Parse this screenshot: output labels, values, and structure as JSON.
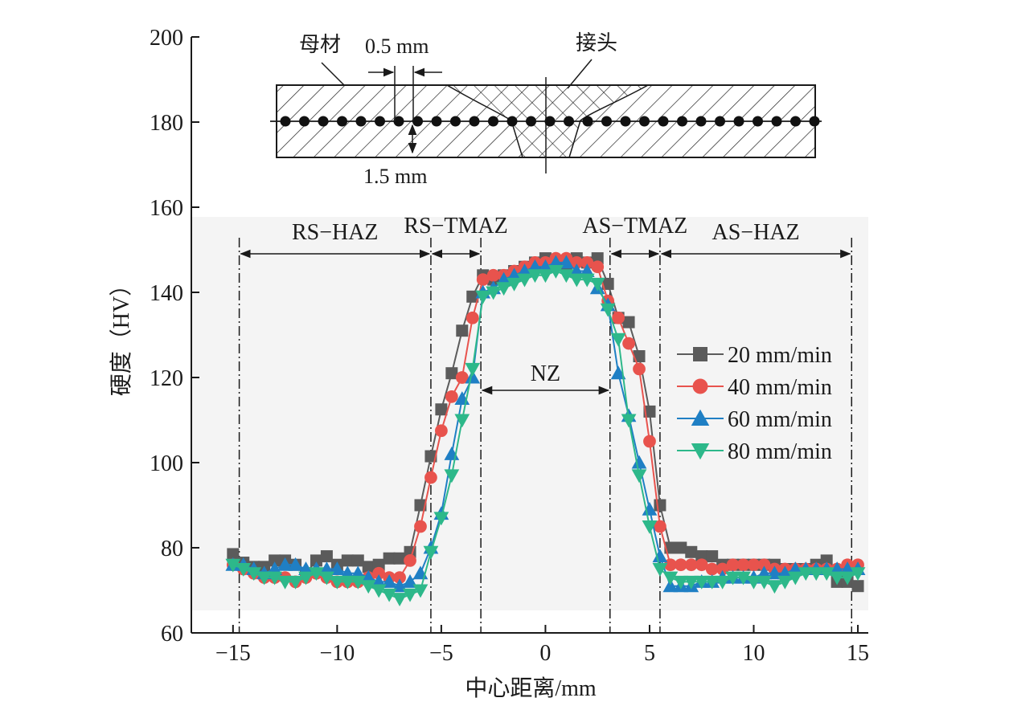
{
  "chart_data": {
    "type": "line",
    "title": "",
    "xlabel": "中心距离/mm",
    "ylabel": "硬度（HV）",
    "xlim": [
      -17,
      15.5
    ],
    "ylim": [
      60,
      200
    ],
    "xticks": [
      -15,
      -10,
      -5,
      0,
      5,
      10,
      15
    ],
    "yticks": [
      60,
      80,
      100,
      120,
      140,
      160,
      180,
      200
    ],
    "xtick_labels": [
      "−15",
      "−10",
      "−5",
      "0",
      "5",
      "10",
      "15"
    ],
    "ytick_labels": [
      "60",
      "80",
      "100",
      "120",
      "140",
      "160",
      "180",
      "200"
    ],
    "grid": false,
    "legend_position": "right",
    "zone_boundaries": [
      -14.7,
      -5.5,
      -3.1,
      3.1,
      5.5,
      14.7
    ],
    "zones": [
      {
        "label": "RS−HAZ",
        "from": -14.7,
        "to": -5.5
      },
      {
        "label": "RS−TMAZ",
        "from": -5.5,
        "to": -3.1
      },
      {
        "label": "NZ",
        "from": -3.1,
        "to": 3.1
      },
      {
        "label": "AS−TMAZ",
        "from": 3.1,
        "to": 5.5
      },
      {
        "label": "AS−HAZ",
        "from": 5.5,
        "to": 14.7
      }
    ],
    "series": [
      {
        "name": "20 mm/min",
        "color": "#5b5b5b",
        "marker": "square",
        "x": [
          -15,
          -14.5,
          -14,
          -13.5,
          -13,
          -12.5,
          -12,
          -11.5,
          -11,
          -10.5,
          -10,
          -9.5,
          -9,
          -8.5,
          -8,
          -7.5,
          -7,
          -6.5,
          -6,
          -5.5,
          -5,
          -4.5,
          -4,
          -3.5,
          -3,
          -2.5,
          -2,
          -1.5,
          -1,
          -0.5,
          0,
          0.5,
          1,
          1.5,
          2,
          2.5,
          3,
          3.5,
          4,
          4.5,
          5,
          5.5,
          6,
          6.5,
          7,
          7.5,
          8,
          8.5,
          9,
          9.5,
          10,
          10.5,
          11,
          11.5,
          12,
          12.5,
          13,
          13.5,
          14,
          14.5,
          15
        ],
        "y": [
          78.5,
          76.5,
          75.5,
          75.5,
          77,
          77,
          76,
          74,
          77,
          78,
          76,
          77,
          77,
          75.5,
          76,
          77.5,
          77.5,
          79,
          90,
          101.5,
          112.5,
          121,
          131,
          139,
          144,
          143,
          144,
          145,
          146,
          147,
          148,
          147,
          146,
          148,
          147,
          148,
          142,
          134,
          133,
          125,
          112,
          90,
          80,
          80,
          79,
          78,
          78,
          76,
          76,
          76,
          76,
          76,
          76,
          75,
          75,
          75,
          76,
          77,
          72,
          72,
          71
        ]
      },
      {
        "name": "40 mm/min",
        "color": "#e8534d",
        "marker": "circle",
        "x": [
          -15,
          -14.5,
          -14,
          -13.5,
          -13,
          -12.5,
          -12,
          -11.5,
          -11,
          -10.5,
          -10,
          -9.5,
          -9,
          -8.5,
          -8,
          -7.5,
          -7,
          -6.5,
          -6,
          -5.5,
          -5,
          -4.5,
          -4,
          -3.5,
          -3,
          -2.5,
          -2,
          -1.5,
          -1,
          -0.5,
          0,
          0.5,
          1,
          1.5,
          2,
          2.5,
          3,
          3.5,
          4,
          4.5,
          5,
          5.5,
          6,
          6.5,
          7,
          7.5,
          8,
          8.5,
          9,
          9.5,
          10,
          10.5,
          11,
          11.5,
          12,
          12.5,
          13,
          13.5,
          14,
          14.5,
          15
        ],
        "y": [
          76,
          75,
          74,
          73,
          73,
          73,
          72,
          73,
          74,
          73,
          72,
          72,
          72,
          73,
          74,
          73,
          73,
          77,
          85,
          96.5,
          107.5,
          115.5,
          120,
          134,
          143,
          144,
          144,
          145,
          146,
          147,
          147,
          148,
          148,
          147,
          147,
          146,
          138,
          134,
          128,
          122,
          105,
          85,
          76,
          76,
          76,
          76,
          75,
          75,
          76,
          76,
          76,
          76,
          75,
          75,
          75,
          75,
          75,
          75,
          75,
          76,
          76
        ]
      },
      {
        "name": "60 mm/min",
        "color": "#1f7fc4",
        "marker": "triangle-up",
        "x": [
          -15,
          -14.5,
          -14,
          -13.5,
          -13,
          -12.5,
          -12,
          -11.5,
          -11,
          -10.5,
          -10,
          -9.5,
          -9,
          -8.5,
          -8,
          -7.5,
          -7,
          -6.5,
          -6,
          -5.5,
          -5,
          -4.5,
          -4,
          -3.5,
          -3,
          -2.5,
          -2,
          -1.5,
          -1,
          -0.5,
          0,
          0.5,
          1,
          1.5,
          2,
          2.5,
          3,
          3.5,
          4,
          4.5,
          5,
          5.5,
          6,
          6.5,
          7,
          7.5,
          8,
          8.5,
          9,
          9.5,
          10,
          10.5,
          11,
          11.5,
          12,
          12.5,
          13,
          13.5,
          14,
          14.5,
          15
        ],
        "y": [
          76,
          76,
          75,
          74,
          75,
          76,
          76,
          75,
          75,
          75,
          75,
          74,
          74,
          73,
          72,
          72,
          71,
          72,
          74,
          80,
          88,
          102,
          115,
          120,
          140,
          141,
          143,
          144,
          145,
          146,
          146,
          147,
          147,
          145,
          145,
          141,
          137,
          121,
          111,
          100,
          89,
          78,
          71,
          71,
          71,
          72,
          72,
          73,
          73,
          73,
          73,
          74,
          74,
          74,
          75,
          75,
          75,
          75,
          75,
          75,
          75
        ]
      },
      {
        "name": "80 mm/min",
        "color": "#2db88a",
        "marker": "triangle-down",
        "x": [
          -15,
          -14.5,
          -14,
          -13.5,
          -13,
          -12.5,
          -12,
          -11.5,
          -11,
          -10.5,
          -10,
          -9.5,
          -9,
          -8.5,
          -8,
          -7.5,
          -7,
          -6.5,
          -6,
          -5.5,
          -5,
          -4.5,
          -4,
          -3.5,
          -3,
          -2.5,
          -2,
          -1.5,
          -1,
          -0.5,
          0,
          0.5,
          1,
          1.5,
          2,
          2.5,
          3,
          3.5,
          4,
          4.5,
          5,
          5.5,
          6,
          6.5,
          7,
          7.5,
          8,
          8.5,
          9,
          9.5,
          10,
          10.5,
          11,
          11.5,
          12,
          12.5,
          13,
          13.5,
          14,
          14.5,
          15
        ],
        "y": [
          76,
          75,
          74,
          73,
          73,
          72,
          72,
          73,
          74,
          73,
          72,
          72,
          72,
          71,
          70,
          69,
          68,
          69,
          70,
          79,
          87,
          97,
          110,
          122,
          139,
          140,
          141,
          142,
          143,
          144,
          144,
          145,
          144,
          143,
          143,
          142,
          136,
          129,
          110,
          97,
          85,
          75,
          73,
          72,
          72,
          72,
          72,
          72,
          73,
          73,
          72,
          72,
          71,
          72,
          73,
          74,
          74,
          74,
          73,
          73,
          74
        ]
      }
    ]
  },
  "inset": {
    "base_metal_label": "母材",
    "joint_label": "接头",
    "spacing_label": "0.5 mm",
    "depth_label": "1.5 mm"
  }
}
